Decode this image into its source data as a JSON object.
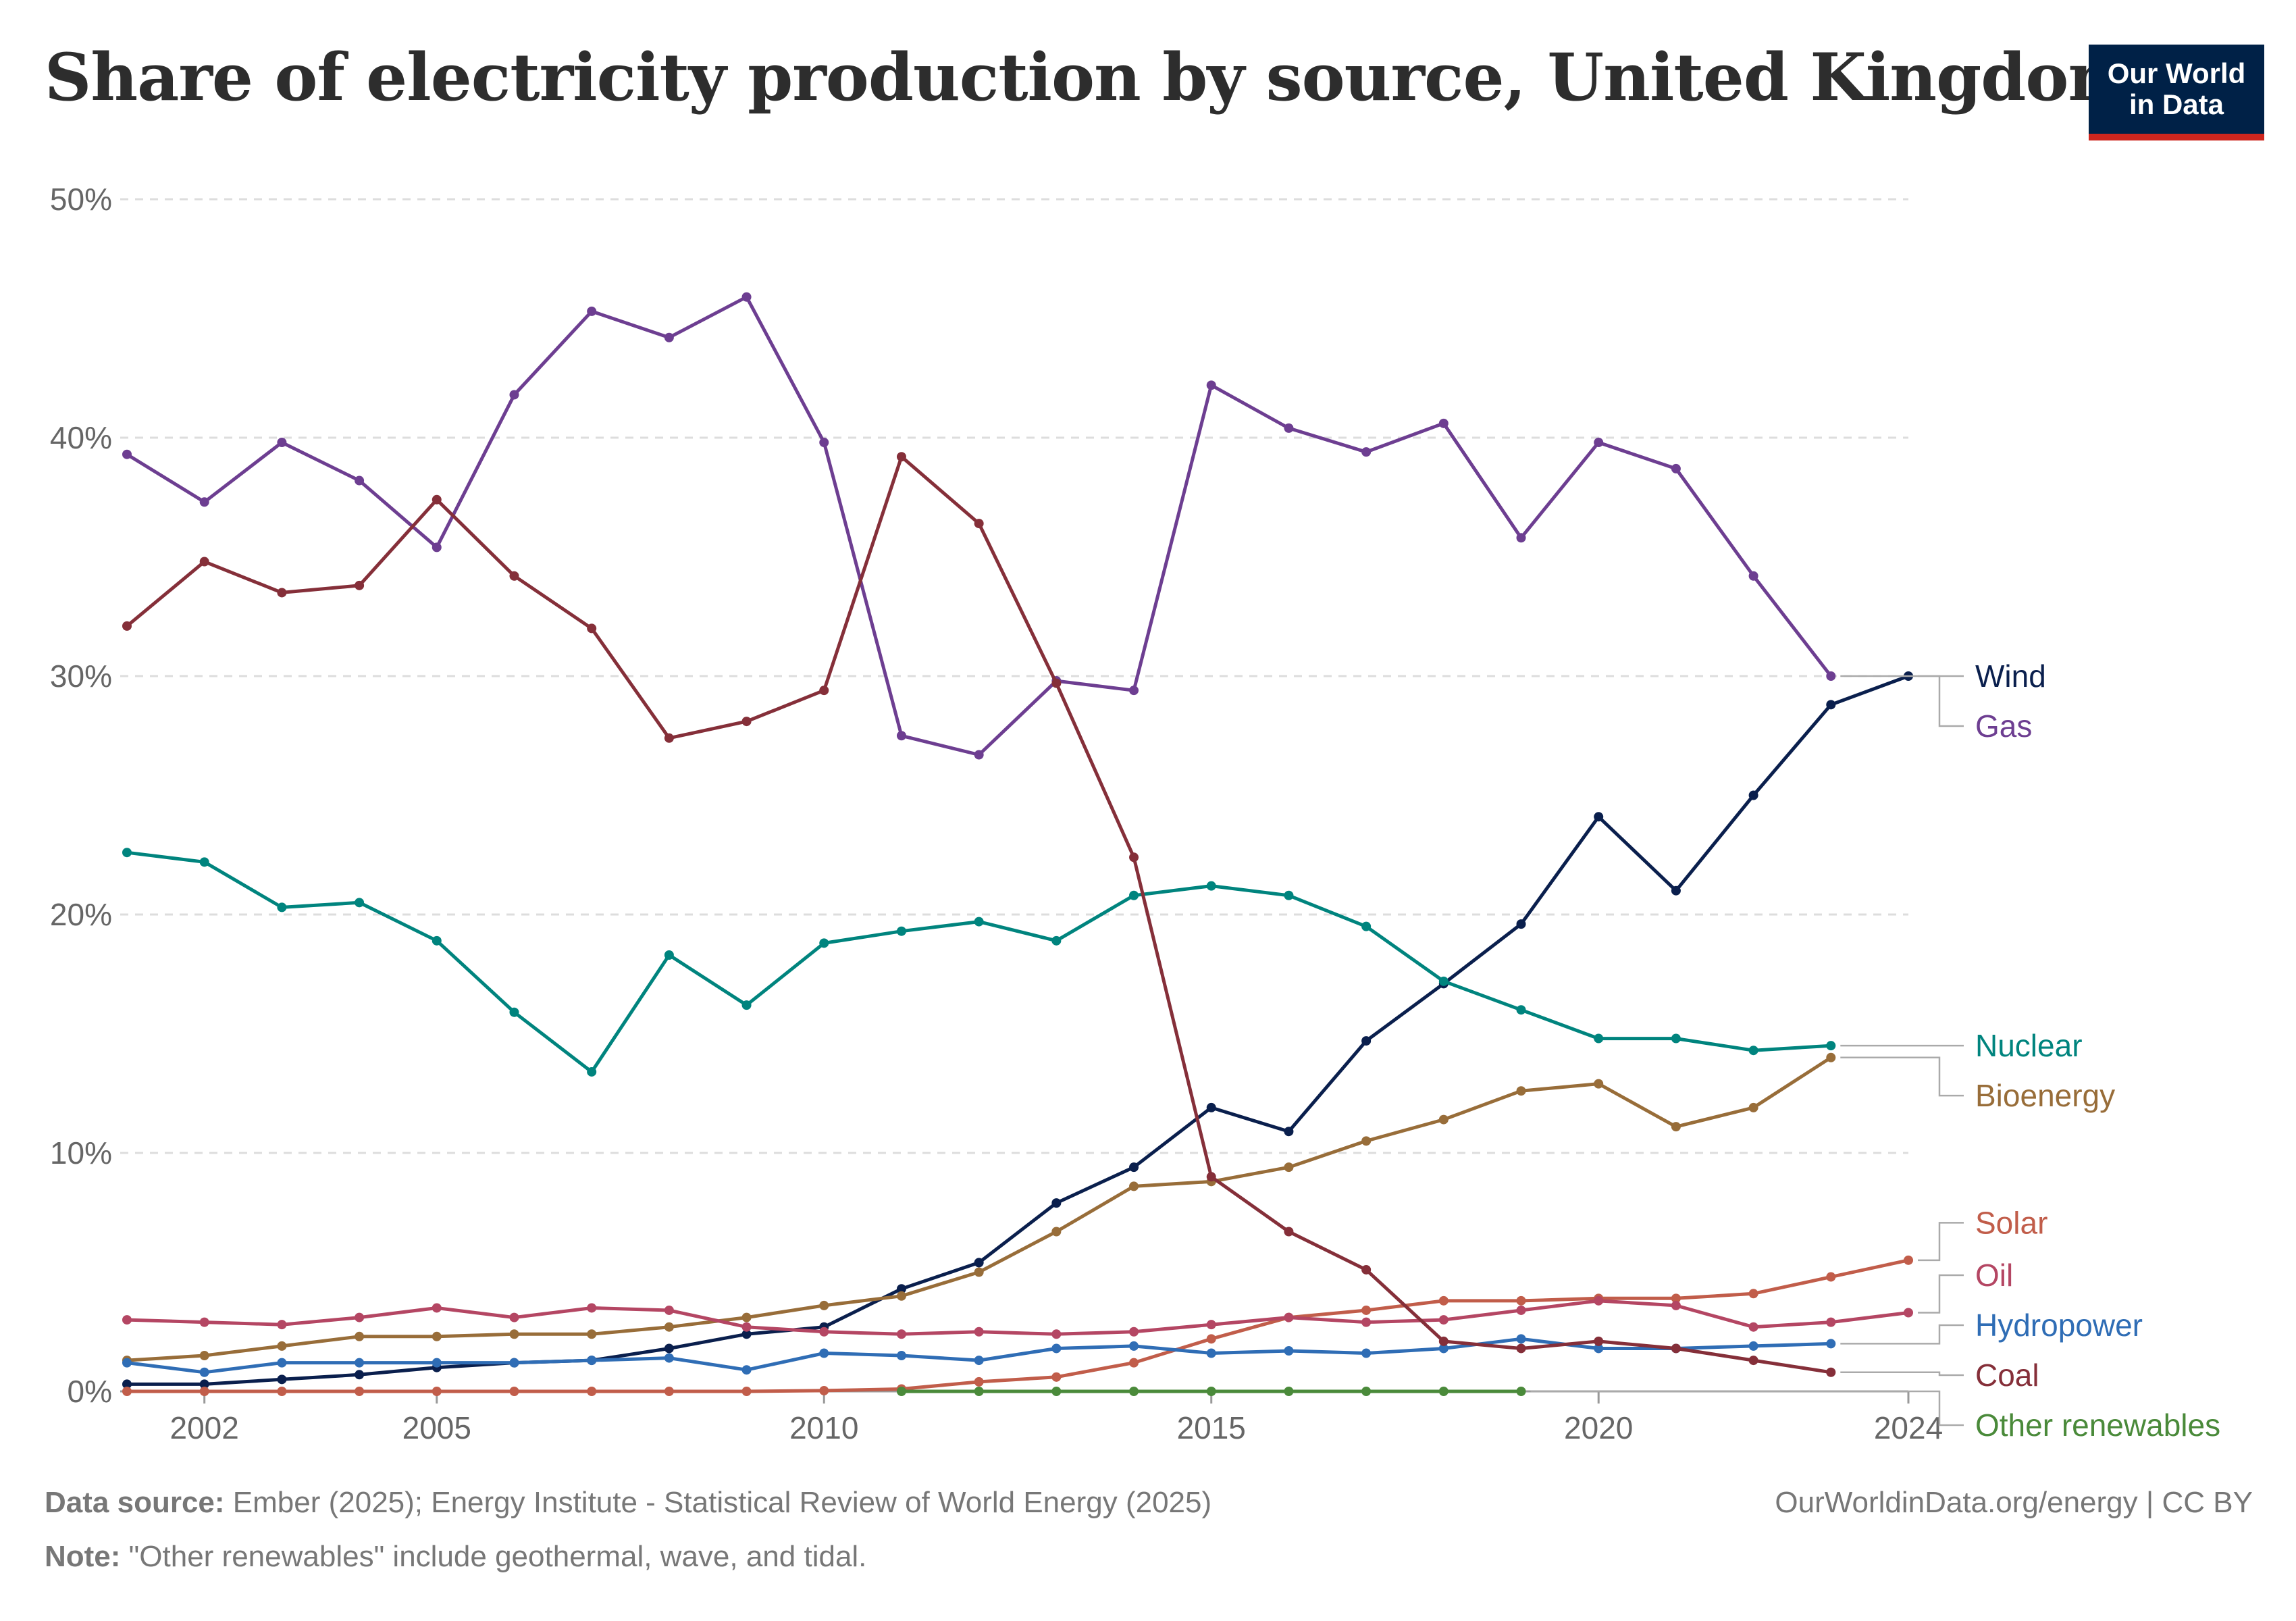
{
  "title": "Share of electricity production by source, United Kingdom",
  "logo": {
    "line1": "Our World",
    "line2": "in Data"
  },
  "footer": {
    "source_label": "Data source:",
    "source_text": "Ember (2025); Energy Institute - Statistical Review of World Energy (2025)",
    "url": "OurWorldinData.org/energy | CC BY",
    "note_label": "Note:",
    "note_text": "\"Other renewables\" include geothermal, wave, and tidal."
  },
  "chart_data": {
    "type": "line",
    "title": "Share of electricity production by source, United Kingdom",
    "xlabel": "",
    "ylabel": "",
    "x": [
      2001,
      2002,
      2003,
      2004,
      2005,
      2006,
      2007,
      2008,
      2009,
      2010,
      2011,
      2012,
      2013,
      2014,
      2015,
      2016,
      2017,
      2018,
      2019,
      2020,
      2021,
      2022,
      2023,
      2024
    ],
    "xlim": [
      2001,
      2024
    ],
    "ylim": [
      0,
      50
    ],
    "x_tick_labels": [
      "2002",
      "2005",
      "2010",
      "2015",
      "2020",
      "2024"
    ],
    "y_tick_labels": [
      "0%",
      "10%",
      "20%",
      "30%",
      "40%",
      "50%"
    ],
    "grid": "horizontal dashed",
    "legend": "right-side line-end labels",
    "series": [
      {
        "name": "Wind",
        "color": "#0a1f4d",
        "values": [
          0.3,
          0.3,
          0.5,
          0.7,
          1.0,
          1.2,
          1.3,
          1.8,
          2.4,
          2.7,
          4.3,
          5.4,
          7.9,
          9.4,
          11.9,
          10.9,
          14.7,
          17.1,
          19.6,
          24.1,
          21.0,
          25.0,
          28.8,
          30.0
        ]
      },
      {
        "name": "Gas",
        "color": "#6d3e91",
        "values": [
          39.3,
          37.3,
          39.8,
          38.2,
          35.4,
          41.8,
          45.3,
          44.2,
          45.9,
          39.8,
          27.5,
          26.7,
          29.8,
          29.4,
          42.2,
          40.4,
          39.4,
          40.6,
          35.8,
          39.8,
          38.7,
          34.2,
          30.0,
          null
        ]
      },
      {
        "name": "Nuclear",
        "color": "#00847e",
        "values": [
          22.6,
          22.2,
          20.3,
          20.5,
          18.9,
          15.9,
          13.4,
          18.3,
          16.2,
          18.8,
          19.3,
          19.7,
          18.9,
          20.8,
          21.2,
          20.8,
          19.5,
          17.2,
          16.0,
          14.8,
          14.8,
          14.3,
          14.5,
          null
        ]
      },
      {
        "name": "Bioenergy",
        "color": "#986d39",
        "values": [
          1.3,
          1.5,
          1.9,
          2.3,
          2.3,
          2.4,
          2.4,
          2.7,
          3.1,
          3.6,
          4.0,
          5.0,
          6.7,
          8.6,
          8.8,
          9.4,
          10.5,
          11.4,
          12.6,
          12.9,
          11.1,
          11.9,
          14.0,
          null
        ]
      },
      {
        "name": "Solar",
        "color": "#c15d4a",
        "values": [
          0,
          0,
          0,
          0,
          0,
          0,
          0,
          0,
          0,
          0.03,
          0.1,
          0.4,
          0.6,
          1.2,
          2.2,
          3.1,
          3.4,
          3.8,
          3.8,
          3.9,
          3.9,
          4.1,
          4.8,
          5.5
        ]
      },
      {
        "name": "Oil",
        "color": "#b44663",
        "values": [
          3.0,
          2.9,
          2.8,
          3.1,
          3.5,
          3.1,
          3.5,
          3.4,
          2.7,
          2.5,
          2.4,
          2.5,
          2.4,
          2.5,
          2.8,
          3.1,
          2.9,
          3.0,
          3.4,
          3.8,
          3.6,
          2.7,
          2.9,
          3.3
        ]
      },
      {
        "name": "Hydropower",
        "color": "#2f6db5",
        "values": [
          1.2,
          0.8,
          1.2,
          1.2,
          1.2,
          1.2,
          1.3,
          1.4,
          0.9,
          1.6,
          1.5,
          1.3,
          1.8,
          1.9,
          1.6,
          1.7,
          1.6,
          1.8,
          2.2,
          1.8,
          1.8,
          1.9,
          2.0,
          null
        ]
      },
      {
        "name": "Coal",
        "color": "#852f39",
        "values": [
          32.1,
          34.8,
          33.5,
          33.8,
          37.4,
          34.2,
          32.0,
          27.4,
          28.1,
          29.4,
          39.2,
          36.4,
          29.7,
          22.4,
          9.0,
          6.7,
          5.1,
          2.1,
          1.8,
          2.1,
          1.8,
          1.3,
          0.8,
          null
        ]
      },
      {
        "name": "Other renewables",
        "color": "#4a8a3a",
        "values": [
          null,
          null,
          null,
          null,
          null,
          null,
          null,
          null,
          null,
          null,
          0,
          0,
          0,
          0,
          0,
          0,
          0,
          0,
          0,
          null,
          null,
          null,
          null,
          null
        ]
      }
    ]
  }
}
